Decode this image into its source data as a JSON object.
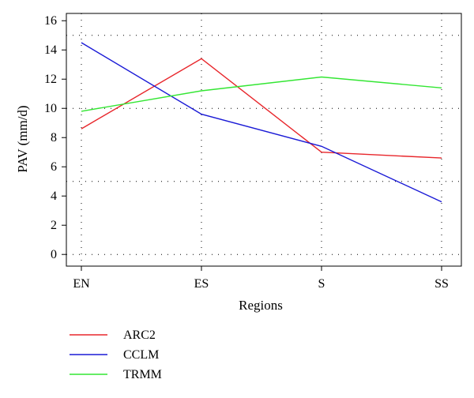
{
  "chart_data": {
    "type": "line",
    "categories": [
      "EN",
      "ES",
      "S",
      "SS"
    ],
    "xlabel": "Regions",
    "ylabel": "PAV (mm/d)",
    "ylim": [
      -0.8,
      16.5
    ],
    "yticks": [
      0,
      2,
      4,
      6,
      8,
      10,
      12,
      14,
      16
    ],
    "grid": {
      "vertical": "dotted at each category",
      "horizontal": [
        0,
        5,
        10,
        15
      ]
    },
    "legend_position": "bottom-left below plot",
    "series": [
      {
        "name": "ARC2",
        "color": "#e8262b",
        "values": [
          8.6,
          13.4,
          7.0,
          6.6
        ]
      },
      {
        "name": "CCLM",
        "color": "#1a1ad6",
        "values": [
          14.5,
          9.6,
          7.4,
          3.6
        ]
      },
      {
        "name": "TRMM",
        "color": "#33e633",
        "values": [
          9.8,
          11.2,
          12.15,
          11.4
        ]
      }
    ]
  }
}
